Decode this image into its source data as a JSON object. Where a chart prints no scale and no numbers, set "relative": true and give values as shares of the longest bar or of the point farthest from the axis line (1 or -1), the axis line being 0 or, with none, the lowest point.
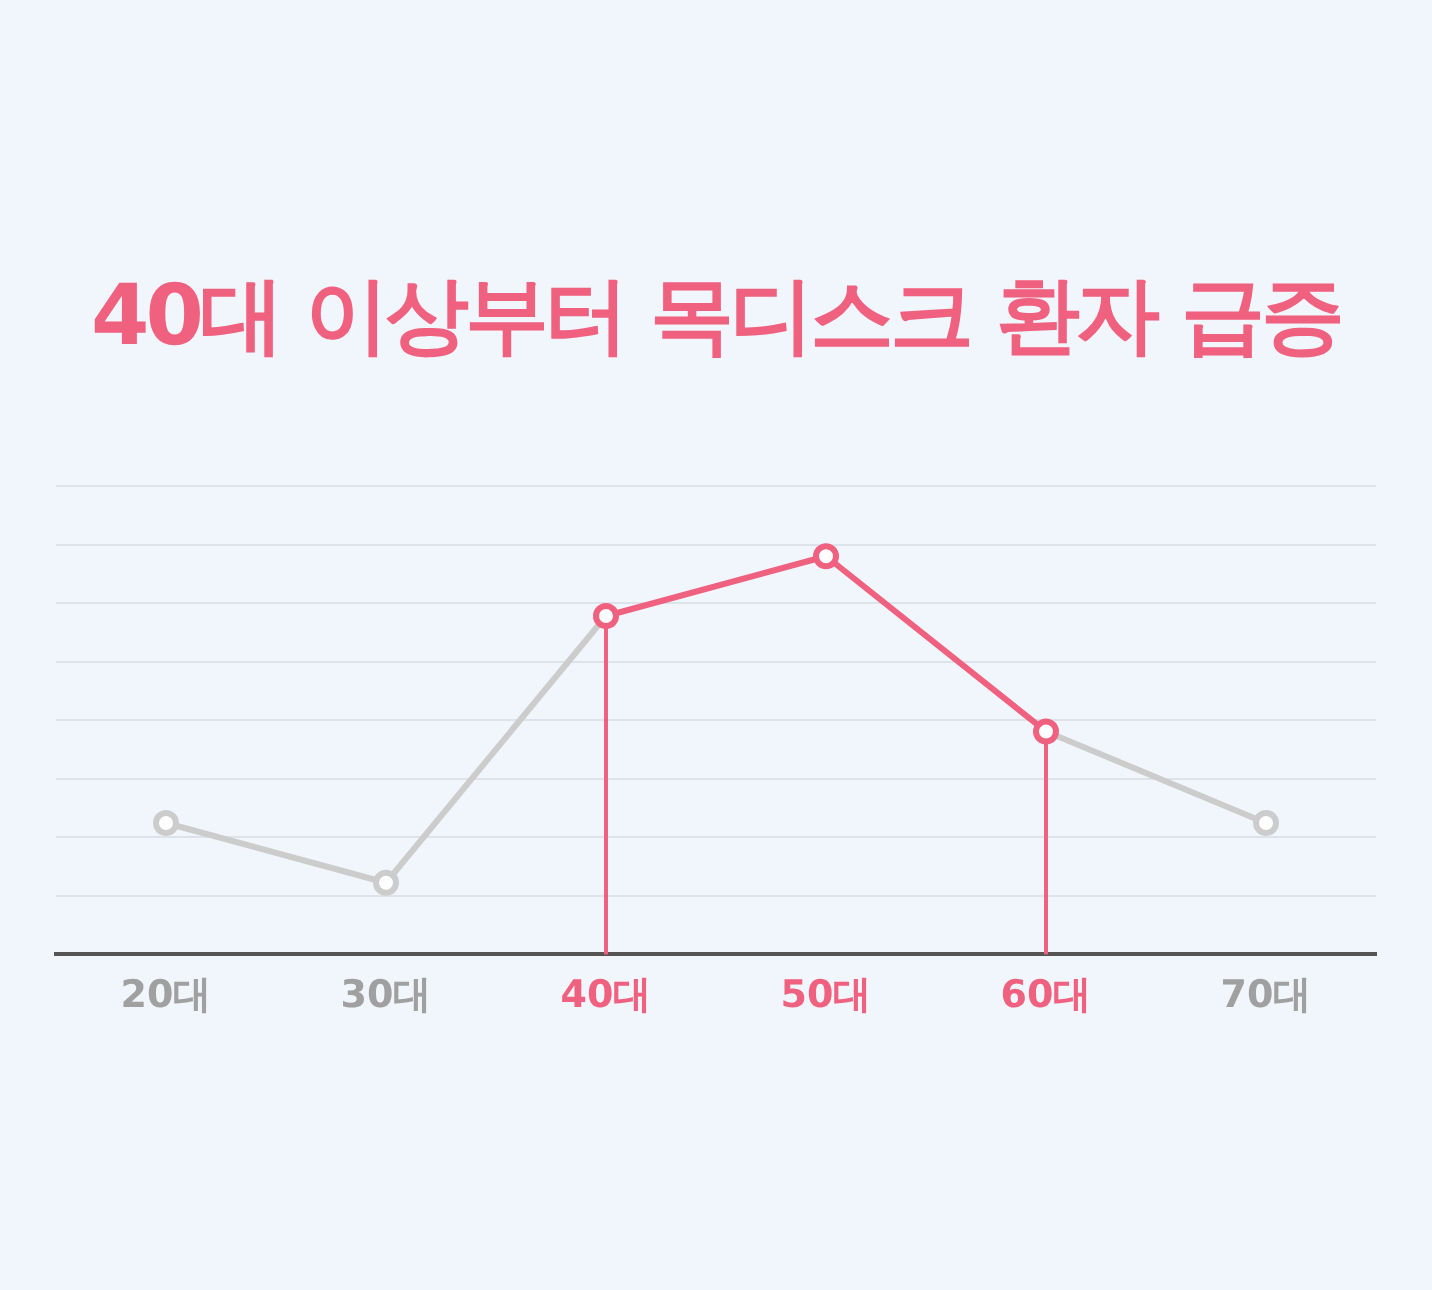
{
  "chart_data": {
    "type": "line",
    "title": "40대 이상부터 목디스크 환자 급증",
    "relative": true,
    "grid": "y",
    "legend": false,
    "marker": "circle",
    "categories": [
      "20대",
      "30대",
      "40대",
      "50대",
      "60대",
      "70대"
    ],
    "series": [
      {
        "color": "#cccccc",
        "values": [
          0.33,
          0.18,
          0.85,
          null,
          0.56,
          0.33
        ]
      },
      {
        "color": "#f0607f",
        "values": [
          null,
          null,
          0.85,
          1,
          0.56,
          null
        ]
      }
    ],
    "ref_lines": [
      {
        "axis": "x",
        "value": "40대",
        "color": "#f0607f"
      },
      {
        "axis": "x",
        "value": "60대",
        "color": "#f0607f"
      }
    ]
  }
}
